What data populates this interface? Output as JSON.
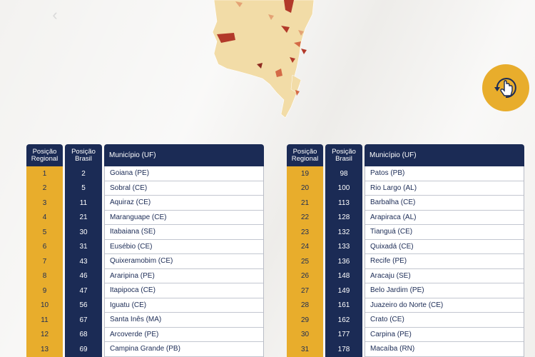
{
  "headers": {
    "regional": "Posição Regional",
    "brasil": "Posição Brasil",
    "municipio": "Município (UF)"
  },
  "colors": {
    "navy": "#1b2b55",
    "gold": "#e8ad2c",
    "map_base": "#f2dca7",
    "map_dark": "#b2392a"
  },
  "icons": {
    "back": "chevron-left-icon",
    "rotate": "hand-rotate-icon"
  },
  "left_table": [
    {
      "regional": "1",
      "brasil": "2",
      "municipio": "Goiana (PE)"
    },
    {
      "regional": "2",
      "brasil": "5",
      "municipio": "Sobral (CE)"
    },
    {
      "regional": "3",
      "brasil": "11",
      "municipio": "Aquiraz (CE)"
    },
    {
      "regional": "4",
      "brasil": "21",
      "municipio": "Maranguape (CE)"
    },
    {
      "regional": "5",
      "brasil": "30",
      "municipio": "Itabaiana (SE)"
    },
    {
      "regional": "6",
      "brasil": "31",
      "municipio": "Eusébio (CE)"
    },
    {
      "regional": "7",
      "brasil": "43",
      "municipio": "Quixeramobim (CE)"
    },
    {
      "regional": "8",
      "brasil": "46",
      "municipio": "Araripina (PE)"
    },
    {
      "regional": "9",
      "brasil": "47",
      "municipio": "Itapipoca (CE)"
    },
    {
      "regional": "10",
      "brasil": "56",
      "municipio": "Iguatu (CE)"
    },
    {
      "regional": "11",
      "brasil": "67",
      "municipio": "Santa Inês (MA)"
    },
    {
      "regional": "12",
      "brasil": "68",
      "municipio": "Arcoverde (PE)"
    },
    {
      "regional": "13",
      "brasil": "69",
      "municipio": "Campina Grande (PB)"
    }
  ],
  "right_table": [
    {
      "regional": "19",
      "brasil": "98",
      "municipio": "Patos (PB)"
    },
    {
      "regional": "20",
      "brasil": "100",
      "municipio": "Rio Largo (AL)"
    },
    {
      "regional": "21",
      "brasil": "113",
      "municipio": "Barbalha (CE)"
    },
    {
      "regional": "22",
      "brasil": "128",
      "municipio": "Arapiraca (AL)"
    },
    {
      "regional": "23",
      "brasil": "132",
      "municipio": "Tianguá (CE)"
    },
    {
      "regional": "24",
      "brasil": "133",
      "municipio": "Quixadá (CE)"
    },
    {
      "regional": "25",
      "brasil": "136",
      "municipio": "Recife (PE)"
    },
    {
      "regional": "26",
      "brasil": "148",
      "municipio": "Aracaju (SE)"
    },
    {
      "regional": "27",
      "brasil": "149",
      "municipio": "Belo Jardim (PE)"
    },
    {
      "regional": "28",
      "brasil": "161",
      "municipio": "Juazeiro do Norte (CE)"
    },
    {
      "regional": "29",
      "brasil": "162",
      "municipio": "Crato (CE)"
    },
    {
      "regional": "30",
      "brasil": "177",
      "municipio": "Carpina (PE)"
    },
    {
      "regional": "31",
      "brasil": "178",
      "municipio": "Macaíba (RN)"
    }
  ]
}
